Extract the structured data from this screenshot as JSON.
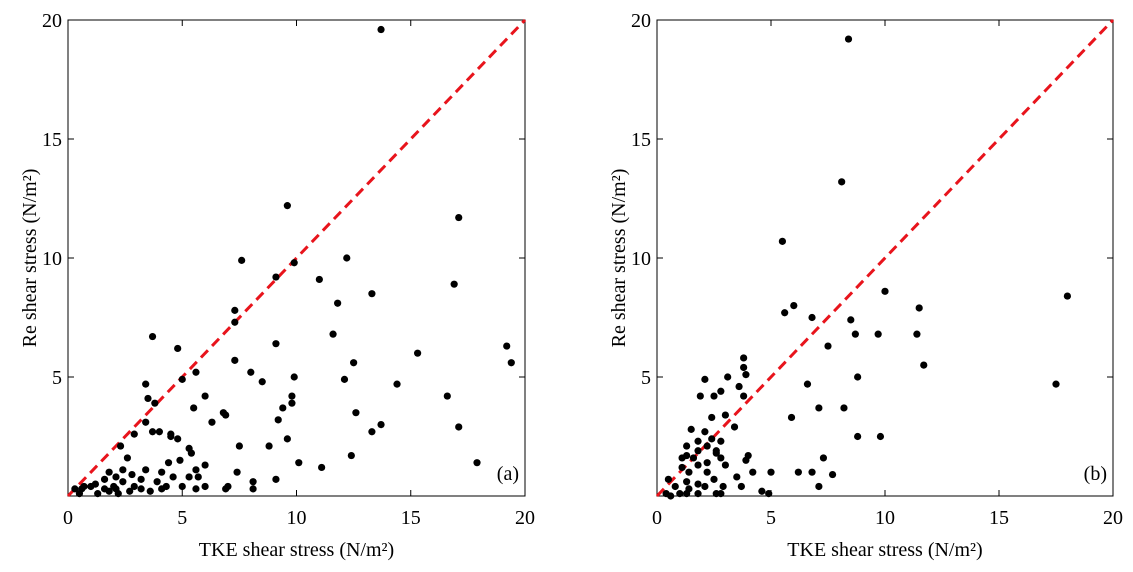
{
  "chart_data": [
    {
      "type": "scatter",
      "x_label": "TKE shear stress (N/m²)",
      "y_label": "Re shear stress (N/m²)",
      "annotation": "(a)",
      "xlim": [
        0,
        20
      ],
      "ylim": [
        0,
        20
      ],
      "xticks": [
        0,
        5,
        10,
        15,
        20
      ],
      "yticks": [
        5,
        10,
        15,
        20
      ],
      "color": "#000000",
      "reference_line": {
        "x": [
          0,
          20
        ],
        "values": [
          0,
          20
        ],
        "color": "#e8141c",
        "dashed": true
      },
      "x": [
        13.7,
        9.6,
        17.1,
        12.2,
        11.0,
        7.6,
        9.9,
        9.1,
        16.9,
        11.8,
        13.3,
        7.3,
        7.3,
        3.7,
        11.6,
        9.1,
        15.3,
        4.8,
        19.2,
        19.4,
        12.5,
        7.3,
        5.6,
        8.0,
        8.5,
        12.1,
        5.0,
        9.9,
        3.4,
        14.4,
        6.0,
        3.5,
        9.8,
        16.6,
        3.8,
        9.8,
        9.4,
        5.5,
        9.2,
        6.8,
        6.9,
        6.3,
        3.4,
        12.6,
        17.1,
        13.7,
        13.3,
        4.0,
        4.5,
        4.5,
        3.7,
        2.9,
        4.8,
        9.6,
        2.3,
        7.5,
        8.8,
        5.3,
        5.4,
        2.6,
        12.4,
        4.9,
        4.4,
        10.1,
        17.9,
        11.1,
        6.0,
        5.6,
        2.4,
        3.4,
        7.4,
        1.8,
        2.8,
        4.1,
        4.6,
        5.3,
        5.7,
        2.1,
        1.6,
        3.2,
        3.9,
        8.1,
        9.1,
        2.4,
        1.2,
        0.7,
        2.0,
        2.9,
        4.3,
        5.0,
        6.0,
        7.0,
        0.6,
        1.0,
        1.6,
        2.1,
        3.2,
        4.1,
        6.9,
        8.1,
        0.3,
        1.8,
        2.7,
        3.6,
        0.5,
        1.3,
        2.2,
        5.6
      ],
      "values": [
        19.6,
        12.2,
        11.7,
        10.0,
        9.1,
        9.9,
        9.8,
        9.2,
        8.9,
        8.1,
        8.5,
        7.8,
        7.3,
        6.7,
        6.8,
        6.4,
        6.0,
        6.2,
        6.3,
        5.6,
        5.6,
        5.7,
        5.2,
        5.2,
        4.8,
        4.9,
        4.9,
        5.0,
        4.7,
        4.7,
        4.2,
        4.1,
        4.2,
        4.2,
        3.9,
        3.9,
        3.7,
        3.7,
        3.2,
        3.5,
        3.4,
        3.1,
        3.1,
        3.5,
        2.9,
        3.0,
        2.7,
        2.7,
        2.6,
        2.5,
        2.7,
        2.6,
        2.4,
        2.4,
        2.1,
        2.1,
        2.1,
        2.0,
        1.8,
        1.6,
        1.7,
        1.5,
        1.4,
        1.4,
        1.4,
        1.2,
        1.3,
        1.1,
        1.1,
        1.1,
        1.0,
        1.0,
        0.9,
        1.0,
        0.8,
        0.8,
        0.8,
        0.8,
        0.7,
        0.7,
        0.6,
        0.6,
        0.7,
        0.6,
        0.5,
        0.4,
        0.4,
        0.4,
        0.4,
        0.4,
        0.4,
        0.4,
        0.3,
        0.4,
        0.3,
        0.3,
        0.3,
        0.3,
        0.3,
        0.3,
        0.3,
        0.2,
        0.2,
        0.2,
        0.1,
        0.1,
        0.1,
        0.3
      ]
    },
    {
      "type": "scatter",
      "x_label": "TKE shear stress (N/m²)",
      "y_label": "Re shear stress (N/m²)",
      "annotation": "(b)",
      "xlim": [
        0,
        20
      ],
      "ylim": [
        0,
        20
      ],
      "xticks": [
        0,
        5,
        10,
        15,
        20
      ],
      "yticks": [
        5,
        10,
        15,
        20
      ],
      "color": "#000000",
      "reference_line": {
        "x": [
          0,
          20
        ],
        "values": [
          0,
          20
        ],
        "color": "#e8141c",
        "dashed": true
      },
      "x": [
        8.4,
        8.1,
        5.5,
        18.0,
        10.0,
        6.0,
        5.6,
        11.5,
        6.8,
        8.5,
        11.4,
        8.7,
        9.7,
        7.5,
        11.7,
        3.8,
        3.8,
        8.8,
        3.9,
        2.1,
        3.1,
        6.6,
        17.5,
        3.6,
        3.8,
        2.8,
        1.9,
        2.5,
        7.1,
        8.2,
        5.9,
        2.4,
        3.0,
        3.4,
        1.5,
        2.1,
        9.8,
        8.8,
        2.4,
        1.8,
        2.8,
        1.3,
        2.2,
        1.8,
        2.6,
        1.3,
        2.6,
        4.0,
        1.6,
        1.1,
        2.8,
        3.9,
        7.3,
        2.2,
        1.8,
        1.1,
        3.0,
        5.0,
        6.2,
        6.8,
        7.7,
        4.2,
        1.4,
        2.2,
        3.5,
        2.5,
        0.5,
        1.3,
        1.8,
        3.7,
        7.1,
        0.8,
        2.1,
        2.9,
        4.6,
        4.9,
        1.4,
        0.4,
        1.0,
        1.8,
        2.6,
        0.6,
        1.3,
        2.8
      ],
      "values": [
        19.2,
        13.2,
        10.7,
        8.4,
        8.6,
        8.0,
        7.7,
        7.9,
        7.5,
        7.4,
        6.8,
        6.8,
        6.8,
        6.3,
        5.5,
        5.8,
        5.4,
        5.0,
        5.1,
        4.9,
        5.0,
        4.7,
        4.7,
        4.6,
        4.2,
        4.4,
        4.2,
        4.2,
        3.7,
        3.7,
        3.3,
        3.3,
        3.4,
        2.9,
        2.8,
        2.7,
        2.5,
        2.5,
        2.4,
        2.3,
        2.3,
        2.1,
        2.1,
        1.9,
        1.9,
        1.7,
        1.8,
        1.7,
        1.6,
        1.6,
        1.6,
        1.5,
        1.6,
        1.4,
        1.3,
        1.2,
        1.3,
        1.0,
        1.0,
        1.0,
        0.9,
        1.0,
        1.0,
        1.0,
        0.8,
        0.7,
        0.7,
        0.6,
        0.5,
        0.4,
        0.4,
        0.4,
        0.4,
        0.4,
        0.2,
        0.1,
        0.3,
        0.1,
        0.1,
        0.1,
        0.1,
        0.0,
        0.1,
        0.1
      ]
    }
  ]
}
